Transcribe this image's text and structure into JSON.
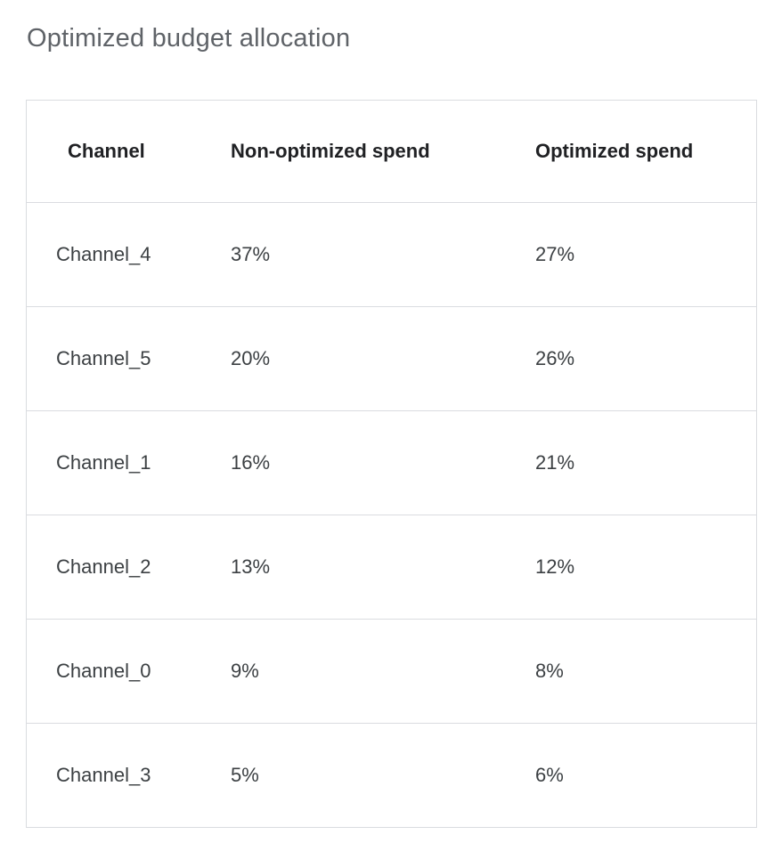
{
  "page": {
    "title": "Optimized budget allocation"
  },
  "colors": {
    "background": "#ffffff",
    "title_text": "#5f6368",
    "header_text": "#202124",
    "body_text": "#3c4043",
    "border": "#dadce0"
  },
  "chart_data": {
    "type": "table",
    "title": "Optimized budget allocation",
    "columns": [
      "Channel",
      "Non-optimized spend",
      "Optimized spend"
    ],
    "rows": [
      [
        "Channel_4",
        "37%",
        "27%"
      ],
      [
        "Channel_5",
        "20%",
        "26%"
      ],
      [
        "Channel_1",
        "16%",
        "21%"
      ],
      [
        "Channel_2",
        "13%",
        "12%"
      ],
      [
        "Channel_0",
        "9%",
        "8%"
      ],
      [
        "Channel_3",
        "5%",
        "6%"
      ]
    ],
    "categories": [
      "Channel_4",
      "Channel_5",
      "Channel_1",
      "Channel_2",
      "Channel_0",
      "Channel_3"
    ],
    "series": [
      {
        "name": "Non-optimized spend",
        "values_pct": [
          37,
          20,
          16,
          13,
          9,
          5
        ]
      },
      {
        "name": "Optimized spend",
        "values_pct": [
          27,
          26,
          21,
          12,
          8,
          6
        ]
      }
    ],
    "legend_position": "none",
    "grid": "row-separators-only"
  }
}
